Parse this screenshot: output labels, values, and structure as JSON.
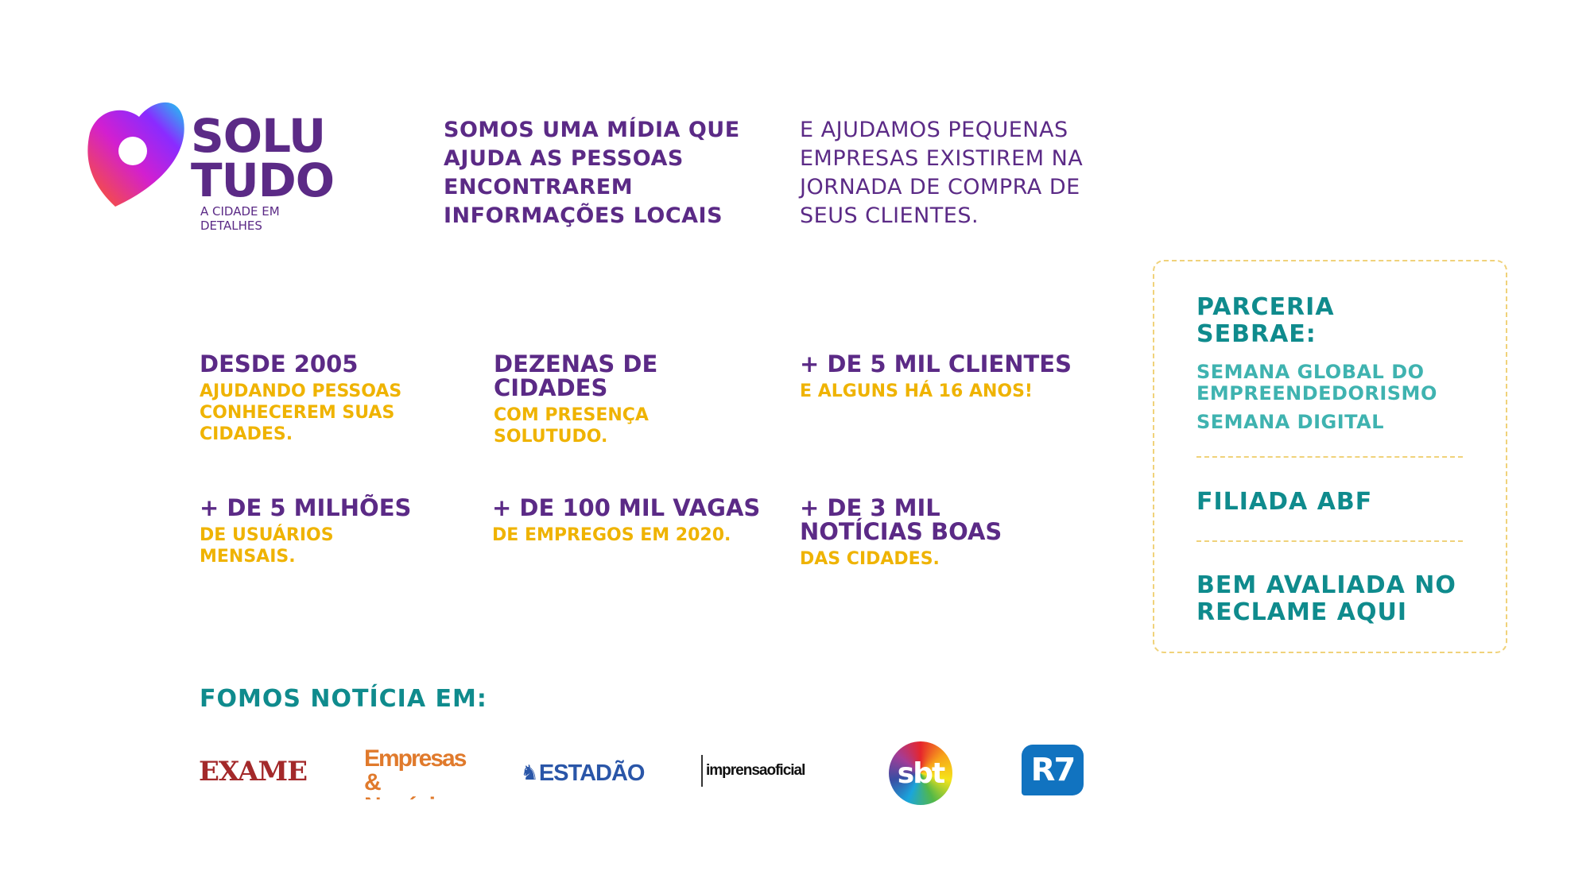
{
  "brand": {
    "name_line1": "SOLU",
    "name_line2": "TUDO",
    "tagline_line1": "A CIDADE EM",
    "tagline_line2": "DETALHES"
  },
  "intro": {
    "left": [
      "SOMOS UMA MÍDIA QUE",
      "AJUDA AS PESSOAS",
      "ENCONTRAREM",
      "INFORMAÇÕES LOCAIS"
    ],
    "right": [
      "E AJUDAMOS PEQUENAS",
      "EMPRESAS EXISTIREM NA",
      "JORNADA DE COMPRA DE",
      "SEUS CLIENTES."
    ]
  },
  "stats": [
    {
      "title": "DESDE 2005",
      "sub": "AJUDANDO PESSOAS CONHECEREM SUAS CIDADES."
    },
    {
      "title": "DEZENAS DE CIDADES",
      "sub": "COM PRESENÇA SOLUTUDO."
    },
    {
      "title": "+ DE 5 MIL CLIENTES",
      "sub": "E ALGUNS HÁ 16 ANOS!"
    },
    {
      "title": "+ DE 5 MILHÕES",
      "sub": "DE USUÁRIOS MENSAIS."
    },
    {
      "title": "+ DE 100 MIL VAGAS",
      "sub": "DE EMPREGOS EM 2020."
    },
    {
      "title": "+ DE 3 MIL NOTÍCIAS BOAS",
      "sub": "DAS CIDADES."
    }
  ],
  "sidebar": {
    "partnership_title": "PARCERIA SEBRAE:",
    "partnership_items": [
      "SEMANA GLOBAL DO EMPREENDEDORISMO",
      "SEMANA DIGITAL"
    ],
    "affiliation": "FILIADA ABF",
    "rating": "BEM AVALIADA NO RECLAME AQUI"
  },
  "press": {
    "title": "FOMOS NOTÍCIA EM:",
    "logos": [
      "EXAME",
      "Empresas & Negócios",
      "ESTADÃO",
      "imprensaoficial",
      "sbt",
      "R7"
    ]
  },
  "colors": {
    "purple": "#5b2a86",
    "yellow": "#efb300",
    "teal": "#0f8b8d"
  }
}
